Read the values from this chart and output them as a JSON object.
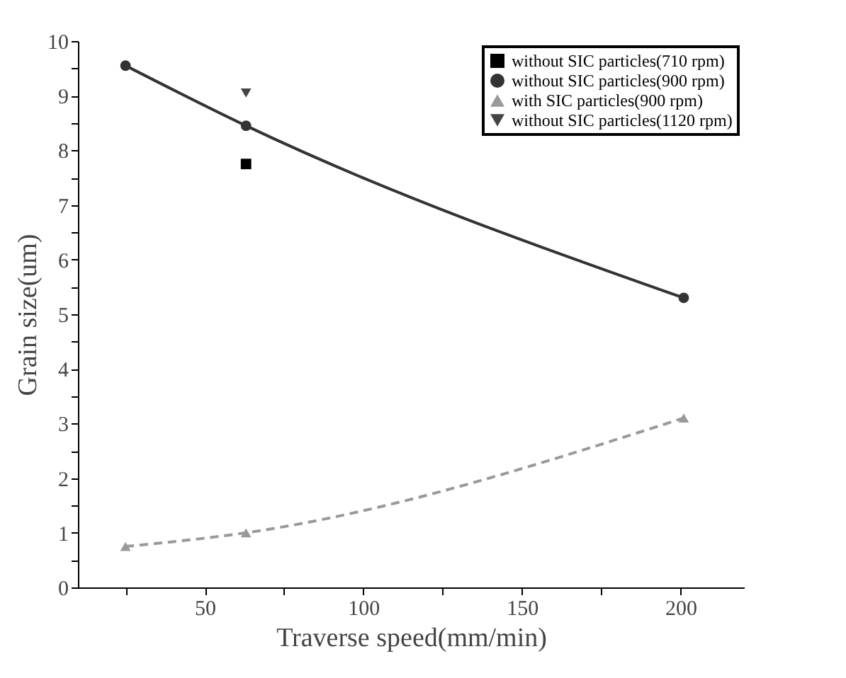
{
  "chart_data": {
    "type": "line",
    "xlabel": "Traverse speed(mm/min)",
    "ylabel": "Grain size(um)",
    "xlim": [
      10,
      220
    ],
    "xticks": [
      {
        "value": 25,
        "label": null
      },
      50,
      {
        "value": 75,
        "label": null
      },
      100,
      {
        "value": 125,
        "label": null
      },
      150,
      {
        "value": 175,
        "label": null
      },
      200
    ],
    "ylim": [
      0,
      10
    ],
    "yticks": [
      0,
      {
        "value": 0.5,
        "label": null
      },
      1,
      {
        "value": 1.5,
        "label": null
      },
      2,
      {
        "value": 2.5,
        "label": null
      },
      3,
      {
        "value": 3.5,
        "label": null
      },
      4,
      {
        "value": 4.5,
        "label": null
      },
      5,
      {
        "value": 5.5,
        "label": null
      },
      6,
      {
        "value": 6.5,
        "label": null
      },
      7,
      {
        "value": 7.5,
        "label": null
      },
      8,
      {
        "value": 8.5,
        "label": null
      },
      9,
      {
        "value": 9.5,
        "label": null
      },
      10
    ],
    "grid": false,
    "legend": "top right",
    "series": [
      {
        "name": "without SIC particles(710 rpm)",
        "type": "scatter",
        "marker": "square",
        "color": "#000000",
        "x": [
          63
        ],
        "values": [
          7.75
        ]
      },
      {
        "name": "without SIC particles(900 rpm)",
        "type": "line",
        "marker": "circle",
        "line_style": "solid",
        "color": "#333333",
        "x": [
          25,
          63,
          201
        ],
        "values": [
          9.55,
          8.45,
          5.3
        ]
      },
      {
        "name": "with SIC particles(900 rpm)",
        "type": "line",
        "marker": "triangle",
        "line_style": "dashed",
        "color": "#999999",
        "x": [
          25,
          63,
          201
        ],
        "values": [
          0.75,
          1.0,
          3.1
        ]
      },
      {
        "name": "without SIC particles(1120 rpm)",
        "type": "scatter",
        "marker": "triangle-down",
        "color": "#444444",
        "x": [
          63
        ],
        "values": [
          9.05
        ]
      }
    ]
  }
}
